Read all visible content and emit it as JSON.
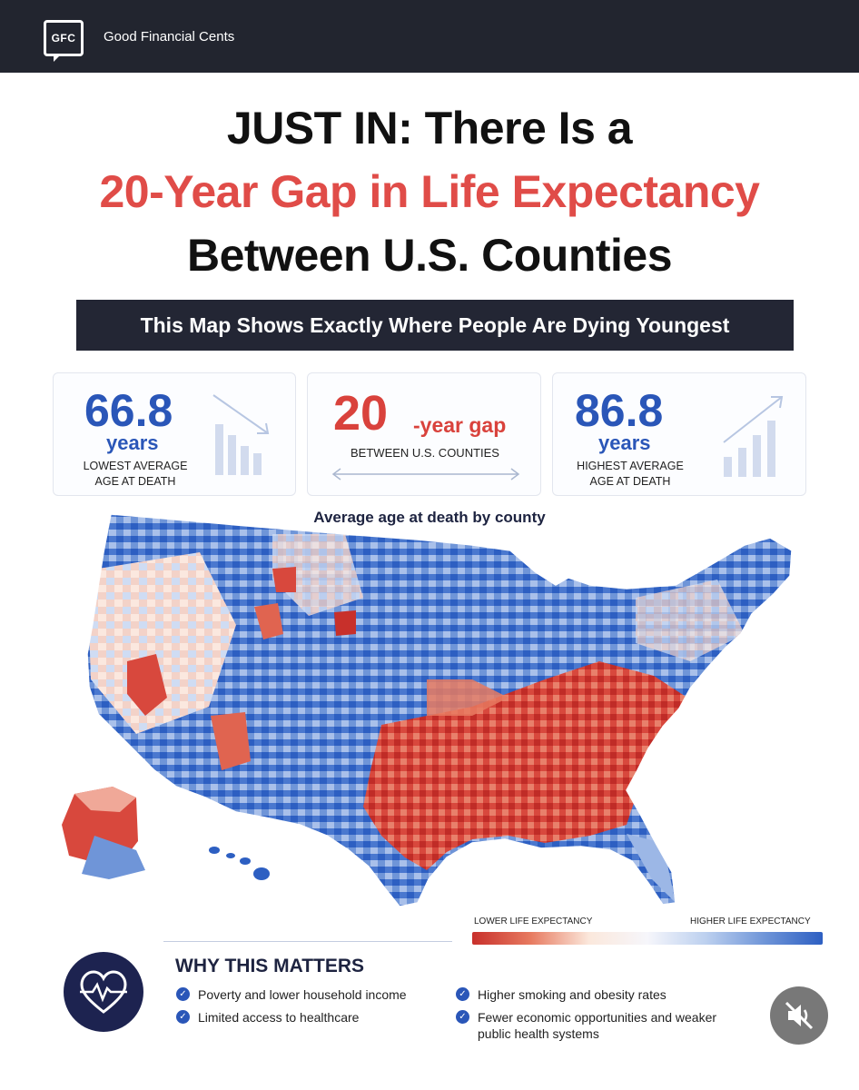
{
  "header": {
    "logo_text": "GFC",
    "brand_name": "Good Financial Cents",
    "background": "#22252f"
  },
  "headline": {
    "line1": "JUST IN:  There Is a",
    "line2": "20-Year Gap in Life Expectancy",
    "line3": "Between U.S. Counties",
    "accent_color": "#e04c48"
  },
  "subheadline": "This Map Shows Exactly Where People Are Dying Youngest",
  "stats": {
    "low": {
      "value": "66.8",
      "unit": "years",
      "caption_line1": "LOWEST AVERAGE",
      "caption_line2": "AGE AT DEATH",
      "icon": "declining-bar-chart-icon"
    },
    "gap": {
      "value": "20",
      "suffix": "-year gap",
      "caption": "BETWEEN U.S. COUNTIES",
      "icon": "double-arrow-icon"
    },
    "high": {
      "value": "86.8",
      "unit": "years",
      "caption_line1": "HIGHEST AVERAGE",
      "caption_line2": "AGE AT DEATH",
      "icon": "rising-bar-chart-icon"
    }
  },
  "map": {
    "title": "Average age at death by county",
    "legend_low": "LOWER LIFE EXPECTANCY",
    "legend_high": "HIGHER LIFE EXPECTANCY",
    "low_color": "#c8302b",
    "high_color": "#2d5fc2"
  },
  "why": {
    "title": "WHY THIS MATTERS",
    "icon": "heartbeat-icon",
    "items": [
      "Poverty and lower household income",
      "Limited access to healthcare",
      "Higher smoking and obesity rates",
      "Fewer economic opportunities and weaker public health systems"
    ]
  },
  "overlay": {
    "icon": "muted-speaker-icon"
  }
}
